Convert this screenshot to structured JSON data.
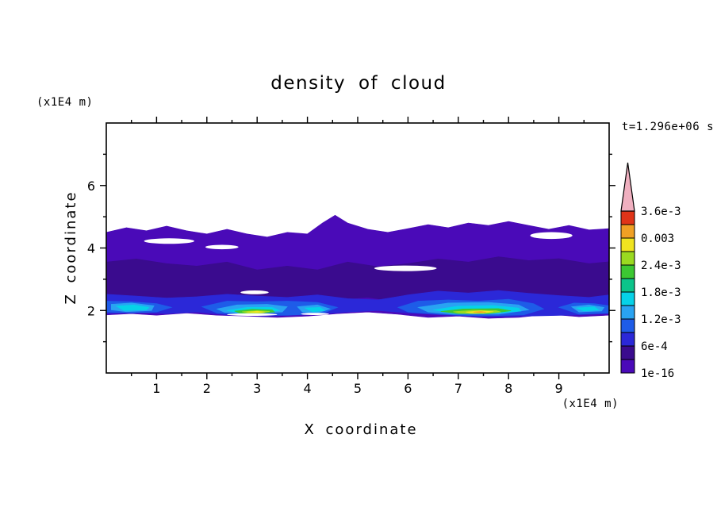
{
  "chart_data": {
    "type": "heatmap",
    "title": "density of cloud",
    "xlabel": "X coordinate",
    "ylabel": "Z coordinate",
    "x_unit": "(x1E4 m)",
    "y_unit": "(x1E4 m)",
    "time_label": "t=1.296e+06 s",
    "xlim": [
      0,
      10
    ],
    "ylim": [
      0,
      8
    ],
    "grid": false,
    "x_major_ticks": [
      1,
      2,
      3,
      4,
      5,
      6,
      7,
      8,
      9
    ],
    "x_minor_ticks": [
      0.5,
      1.5,
      2.5,
      3.5,
      4.5,
      5.5,
      6.5,
      7.5,
      8.5,
      9.5
    ],
    "y_major_ticks": [
      2,
      4,
      6
    ],
    "y_minor_ticks": [
      1,
      3,
      5,
      7
    ],
    "colorbar": {
      "position": "right",
      "boundary_labels": [
        "1e-16",
        "6e-4",
        "1.2e-3",
        "1.8e-3",
        "2.4e-3",
        "0.003",
        "3.6e-3"
      ],
      "levels": [
        1e-16,
        0.0003,
        0.0006,
        0.0009,
        0.0012,
        0.0015,
        0.0018,
        0.0021,
        0.0024,
        0.0027,
        0.003,
        0.0033,
        0.0036
      ],
      "colors": [
        "#4a0ab8",
        "#3a0b8e",
        "#2b28d8",
        "#1e5ce8",
        "#29a3f2",
        "#06d2e8",
        "#0cc48a",
        "#3cc832",
        "#9ada20",
        "#f0e420",
        "#f0a024",
        "#e03418"
      ],
      "overflow_color": "#f0b0c0"
    },
    "field_shapes": [
      {
        "level": 0,
        "points": [
          [
            0,
            4.5
          ],
          [
            0.4,
            4.65
          ],
          [
            0.8,
            4.55
          ],
          [
            1.2,
            4.7
          ],
          [
            1.6,
            4.55
          ],
          [
            2.0,
            4.45
          ],
          [
            2.4,
            4.6
          ],
          [
            2.8,
            4.45
          ],
          [
            3.2,
            4.35
          ],
          [
            3.6,
            4.5
          ],
          [
            4.0,
            4.45
          ],
          [
            4.3,
            4.8
          ],
          [
            4.55,
            5.05
          ],
          [
            4.8,
            4.8
          ],
          [
            5.2,
            4.6
          ],
          [
            5.6,
            4.5
          ],
          [
            6.0,
            4.62
          ],
          [
            6.4,
            4.75
          ],
          [
            6.8,
            4.65
          ],
          [
            7.2,
            4.8
          ],
          [
            7.6,
            4.72
          ],
          [
            8.0,
            4.85
          ],
          [
            8.4,
            4.72
          ],
          [
            8.8,
            4.6
          ],
          [
            9.2,
            4.72
          ],
          [
            9.6,
            4.58
          ],
          [
            10,
            4.62
          ],
          [
            10,
            1.85
          ],
          [
            9.4,
            1.8
          ],
          [
            8.8,
            1.88
          ],
          [
            8.2,
            1.78
          ],
          [
            7.6,
            1.75
          ],
          [
            7.0,
            1.82
          ],
          [
            6.4,
            1.78
          ],
          [
            5.8,
            1.88
          ],
          [
            5.2,
            1.95
          ],
          [
            4.6,
            1.9
          ],
          [
            4.0,
            1.82
          ],
          [
            3.4,
            1.78
          ],
          [
            2.8,
            1.82
          ],
          [
            2.2,
            1.85
          ],
          [
            1.6,
            1.92
          ],
          [
            1.0,
            1.85
          ],
          [
            0.5,
            1.9
          ],
          [
            0,
            1.86
          ]
        ]
      },
      {
        "level": 1,
        "points": [
          [
            0,
            3.55
          ],
          [
            0.6,
            3.65
          ],
          [
            1.2,
            3.5
          ],
          [
            1.8,
            3.42
          ],
          [
            2.4,
            3.55
          ],
          [
            3.0,
            3.3
          ],
          [
            3.6,
            3.42
          ],
          [
            4.2,
            3.3
          ],
          [
            4.8,
            3.55
          ],
          [
            5.4,
            3.4
          ],
          [
            6.0,
            3.5
          ],
          [
            6.6,
            3.65
          ],
          [
            7.2,
            3.55
          ],
          [
            7.8,
            3.72
          ],
          [
            8.4,
            3.6
          ],
          [
            9.0,
            3.66
          ],
          [
            9.6,
            3.5
          ],
          [
            10,
            3.56
          ],
          [
            10,
            2.25
          ],
          [
            9.4,
            2.18
          ],
          [
            8.8,
            2.12
          ],
          [
            8.2,
            2.1
          ],
          [
            7.6,
            2.18
          ],
          [
            7.0,
            2.22
          ],
          [
            6.4,
            2.18
          ],
          [
            5.8,
            2.28
          ],
          [
            5.2,
            2.42
          ],
          [
            4.6,
            2.35
          ],
          [
            4.0,
            2.28
          ],
          [
            3.4,
            2.22
          ],
          [
            2.8,
            2.25
          ],
          [
            2.2,
            2.32
          ],
          [
            1.6,
            2.38
          ],
          [
            1.0,
            2.35
          ],
          [
            0.4,
            2.4
          ],
          [
            0,
            2.35
          ]
        ]
      },
      {
        "level": 2,
        "points": [
          [
            0,
            2.52
          ],
          [
            0.6,
            2.46
          ],
          [
            1.2,
            2.4
          ],
          [
            1.8,
            2.44
          ],
          [
            2.4,
            2.52
          ],
          [
            3.0,
            2.46
          ],
          [
            3.6,
            2.42
          ],
          [
            4.2,
            2.5
          ],
          [
            4.8,
            2.38
          ],
          [
            5.4,
            2.34
          ],
          [
            6.0,
            2.5
          ],
          [
            6.6,
            2.62
          ],
          [
            7.2,
            2.56
          ],
          [
            7.8,
            2.64
          ],
          [
            8.4,
            2.55
          ],
          [
            9.0,
            2.48
          ],
          [
            9.6,
            2.42
          ],
          [
            10,
            2.5
          ],
          [
            10,
            1.9
          ],
          [
            9.2,
            1.85
          ],
          [
            8.4,
            1.82
          ],
          [
            7.6,
            1.8
          ],
          [
            6.8,
            1.85
          ],
          [
            6.0,
            1.92
          ],
          [
            5.4,
            2.0
          ],
          [
            4.8,
            1.95
          ],
          [
            4.0,
            1.86
          ],
          [
            3.2,
            1.82
          ],
          [
            2.4,
            1.86
          ],
          [
            1.8,
            1.95
          ],
          [
            1.2,
            1.9
          ],
          [
            0.6,
            1.94
          ],
          [
            0,
            1.9
          ]
        ]
      },
      {
        "level": 3,
        "points": [
          [
            0,
            2.3
          ],
          [
            0.5,
            2.28
          ],
          [
            1.0,
            2.22
          ],
          [
            1.3,
            2.1
          ],
          [
            1.0,
            1.95
          ],
          [
            0.5,
            1.92
          ],
          [
            0,
            1.95
          ]
        ]
      },
      {
        "level": 3,
        "points": [
          [
            1.9,
            2.12
          ],
          [
            2.4,
            2.3
          ],
          [
            3.0,
            2.28
          ],
          [
            3.6,
            2.3
          ],
          [
            4.2,
            2.26
          ],
          [
            4.6,
            2.1
          ],
          [
            4.3,
            1.9
          ],
          [
            3.6,
            1.85
          ],
          [
            2.8,
            1.86
          ],
          [
            2.2,
            1.92
          ]
        ]
      },
      {
        "level": 3,
        "points": [
          [
            5.8,
            2.1
          ],
          [
            6.2,
            2.3
          ],
          [
            6.8,
            2.34
          ],
          [
            7.4,
            2.3
          ],
          [
            8.0,
            2.36
          ],
          [
            8.5,
            2.22
          ],
          [
            8.7,
            2.05
          ],
          [
            8.3,
            1.86
          ],
          [
            7.4,
            1.82
          ],
          [
            6.6,
            1.88
          ],
          [
            6.0,
            1.95
          ]
        ]
      },
      {
        "level": 3,
        "points": [
          [
            9.0,
            2.1
          ],
          [
            9.3,
            2.24
          ],
          [
            9.7,
            2.22
          ],
          [
            10,
            2.15
          ],
          [
            10,
            1.92
          ],
          [
            9.4,
            1.88
          ]
        ]
      },
      {
        "level": 4,
        "points": [
          [
            0.1,
            2.2
          ],
          [
            0.5,
            2.24
          ],
          [
            0.95,
            2.15
          ],
          [
            0.9,
            2.0
          ],
          [
            0.4,
            1.96
          ],
          [
            0.1,
            2.02
          ]
        ]
      },
      {
        "level": 4,
        "points": [
          [
            2.2,
            2.05
          ],
          [
            2.6,
            2.18
          ],
          [
            3.2,
            2.2
          ],
          [
            3.6,
            2.12
          ],
          [
            3.5,
            1.95
          ],
          [
            2.8,
            1.9
          ],
          [
            2.35,
            1.94
          ]
        ]
      },
      {
        "level": 4,
        "points": [
          [
            3.8,
            2.12
          ],
          [
            4.2,
            2.18
          ],
          [
            4.45,
            2.05
          ],
          [
            4.2,
            1.92
          ],
          [
            3.9,
            1.95
          ]
        ]
      },
      {
        "level": 4,
        "points": [
          [
            6.2,
            2.1
          ],
          [
            6.8,
            2.24
          ],
          [
            7.6,
            2.26
          ],
          [
            8.2,
            2.18
          ],
          [
            8.4,
            2.02
          ],
          [
            7.8,
            1.88
          ],
          [
            6.9,
            1.88
          ],
          [
            6.4,
            1.95
          ]
        ]
      },
      {
        "level": 4,
        "points": [
          [
            9.25,
            2.12
          ],
          [
            9.6,
            2.18
          ],
          [
            9.9,
            2.1
          ],
          [
            9.85,
            1.98
          ],
          [
            9.4,
            1.95
          ]
        ]
      },
      {
        "level": 5,
        "points": [
          [
            0.2,
            2.14
          ],
          [
            0.55,
            2.18
          ],
          [
            0.85,
            2.1
          ],
          [
            0.8,
            2.02
          ],
          [
            0.35,
            2.0
          ]
        ]
      },
      {
        "level": 5,
        "points": [
          [
            2.4,
            2.0
          ],
          [
            2.8,
            2.1
          ],
          [
            3.3,
            2.1
          ],
          [
            3.45,
            2.0
          ],
          [
            3.0,
            1.93
          ],
          [
            2.55,
            1.95
          ]
        ]
      },
      {
        "level": 5,
        "points": [
          [
            3.95,
            2.08
          ],
          [
            4.25,
            2.1
          ],
          [
            4.35,
            2.0
          ],
          [
            4.1,
            1.96
          ]
        ]
      },
      {
        "level": 5,
        "points": [
          [
            6.5,
            2.02
          ],
          [
            7.0,
            2.14
          ],
          [
            7.7,
            2.16
          ],
          [
            8.2,
            2.08
          ],
          [
            8.25,
            1.98
          ],
          [
            7.6,
            1.9
          ],
          [
            6.9,
            1.92
          ]
        ]
      },
      {
        "level": 5,
        "points": [
          [
            9.35,
            2.08
          ],
          [
            9.7,
            2.12
          ],
          [
            9.8,
            2.02
          ],
          [
            9.5,
            1.98
          ]
        ]
      },
      {
        "level": 7,
        "points": [
          [
            2.55,
            1.98
          ],
          [
            2.9,
            2.04
          ],
          [
            3.3,
            2.02
          ],
          [
            3.35,
            1.95
          ],
          [
            2.9,
            1.9
          ],
          [
            2.65,
            1.92
          ]
        ]
      },
      {
        "level": 7,
        "points": [
          [
            6.65,
            1.97
          ],
          [
            7.1,
            2.05
          ],
          [
            7.8,
            2.06
          ],
          [
            8.05,
            1.99
          ],
          [
            7.6,
            1.9
          ],
          [
            7.0,
            1.9
          ]
        ]
      },
      {
        "level": 8,
        "points": [
          [
            2.7,
            1.96
          ],
          [
            3.0,
            2.0
          ],
          [
            3.25,
            1.97
          ],
          [
            3.1,
            1.92
          ],
          [
            2.8,
            1.92
          ]
        ]
      },
      {
        "level": 8,
        "points": [
          [
            6.9,
            1.96
          ],
          [
            7.3,
            2.01
          ],
          [
            7.75,
            2.0
          ],
          [
            7.85,
            1.95
          ],
          [
            7.3,
            1.9
          ],
          [
            7.0,
            1.92
          ]
        ]
      },
      {
        "level": 9,
        "points": [
          [
            2.8,
            1.95
          ],
          [
            3.0,
            1.975
          ],
          [
            3.15,
            1.95
          ],
          [
            3.0,
            1.93
          ]
        ]
      },
      {
        "level": 9,
        "points": [
          [
            7.15,
            1.95
          ],
          [
            7.45,
            1.99
          ],
          [
            7.7,
            1.96
          ],
          [
            7.5,
            1.915
          ],
          [
            7.25,
            1.92
          ]
        ]
      },
      {
        "level": 10,
        "points": [
          [
            7.3,
            1.95
          ],
          [
            7.45,
            1.965
          ],
          [
            7.55,
            1.945
          ],
          [
            7.42,
            1.93
          ]
        ]
      }
    ],
    "white_gaps": [
      [
        1.25,
        4.22,
        0.5,
        0.09
      ],
      [
        2.3,
        4.03,
        0.33,
        0.07
      ],
      [
        5.95,
        3.35,
        0.62,
        0.09
      ],
      [
        8.85,
        4.4,
        0.42,
        0.11
      ],
      [
        2.95,
        2.58,
        0.28,
        0.06
      ],
      [
        2.9,
        1.87,
        0.5,
        0.04
      ],
      [
        4.15,
        1.89,
        0.28,
        0.035
      ]
    ]
  }
}
